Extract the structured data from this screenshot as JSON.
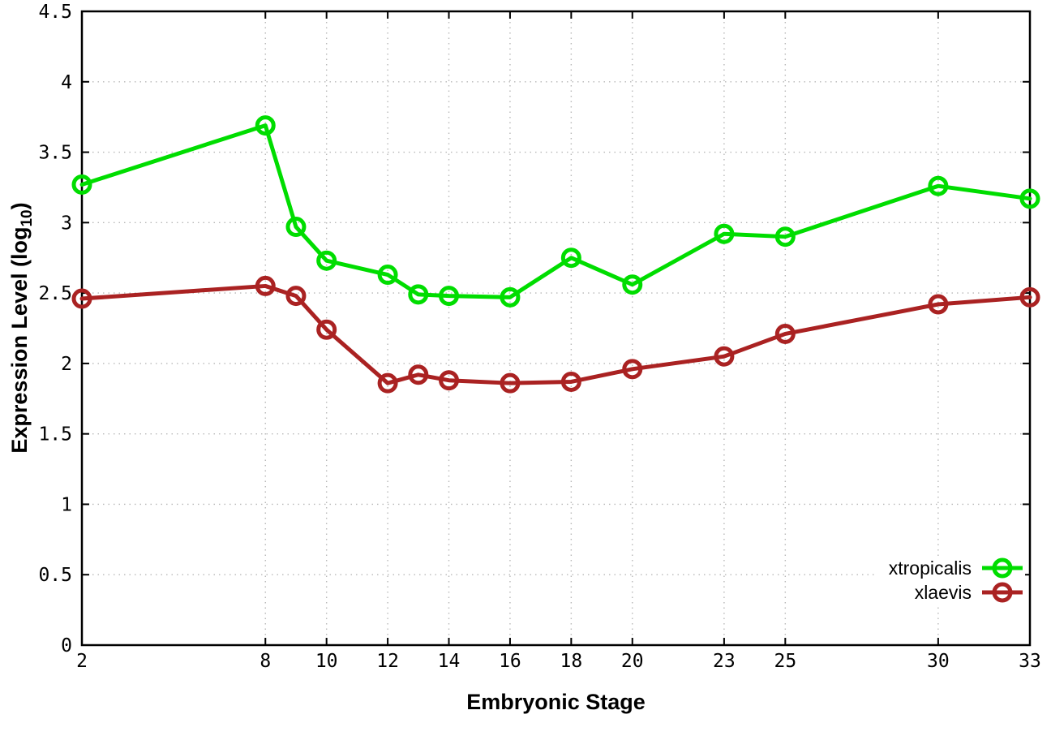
{
  "chart_data": {
    "type": "line",
    "title": "",
    "xlabel": "Embryonic Stage",
    "ylabel": {
      "prefix": "Expression Level (log",
      "sub": "10",
      "suffix": ")"
    },
    "x": [
      2,
      8,
      9,
      10,
      12,
      13,
      14,
      16,
      18,
      20,
      23,
      25,
      30,
      33
    ],
    "series": [
      {
        "name": "xtropicalis",
        "color": "#00dd00",
        "values": [
          3.27,
          3.69,
          2.97,
          2.73,
          2.63,
          2.49,
          2.48,
          2.47,
          2.75,
          2.56,
          2.92,
          2.9,
          3.26,
          3.17
        ]
      },
      {
        "name": "xlaevis",
        "color": "#aa2222",
        "values": [
          2.46,
          2.55,
          2.48,
          2.24,
          1.86,
          1.92,
          1.88,
          1.86,
          1.87,
          1.96,
          2.05,
          2.21,
          2.42,
          2.47
        ]
      }
    ],
    "xticks": [
      2,
      8,
      10,
      12,
      14,
      16,
      18,
      20,
      23,
      25,
      30,
      33
    ],
    "yticks": [
      0,
      0.5,
      1,
      1.5,
      2,
      2.5,
      3,
      3.5,
      4,
      4.5
    ],
    "xlim": [
      2,
      33
    ],
    "ylim": [
      0,
      4.5
    ],
    "grid": true,
    "legend_position": "bottom-right",
    "colors": {
      "axis": "#000000",
      "grid": "#b8b8b8",
      "background": "#ffffff"
    }
  }
}
